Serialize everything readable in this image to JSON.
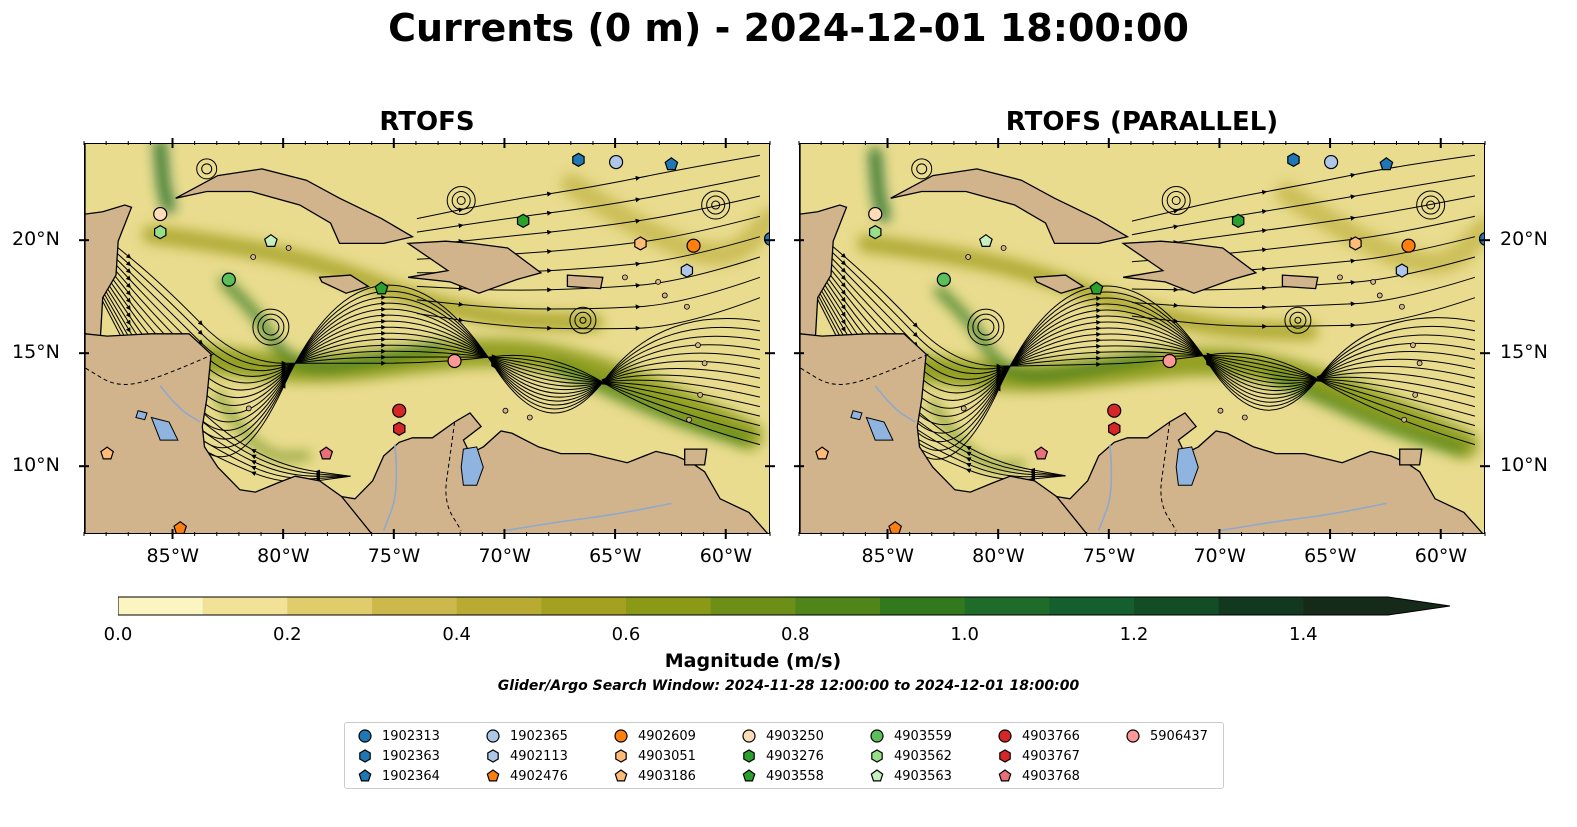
{
  "title": "Currents (0 m) - 2024-12-01 18:00:00",
  "panels": [
    {
      "title": "RTOFS"
    },
    {
      "title": "RTOFS (PARALLEL)"
    }
  ],
  "map_extent": {
    "lon": [
      -89.0,
      -58.0
    ],
    "lat": [
      7.0,
      24.3
    ]
  },
  "lon_ticks": [
    "85°W",
    "80°W",
    "75°W",
    "70°W",
    "65°W",
    "60°W"
  ],
  "lat_ticks": [
    "10°N",
    "15°N",
    "20°N"
  ],
  "colorbar": {
    "label": "Magnitude (m/s)",
    "ticks": [
      "0.0",
      "0.2",
      "0.4",
      "0.6",
      "0.8",
      "1.0",
      "1.2",
      "1.4"
    ],
    "range": [
      0.0,
      1.5
    ],
    "extend": "max",
    "colors": [
      "#fbf5c2",
      "#f1e297",
      "#e1cc6b",
      "#cdb84b",
      "#b9aa34",
      "#a4a020",
      "#8a9a16",
      "#6d8f17",
      "#4f8519",
      "#32791d",
      "#1f6c2a",
      "#155e2d",
      "#134d26",
      "#12391f",
      "#152a18"
    ]
  },
  "land_color": "#d2b48c",
  "lake_color": "#8fb4e0",
  "search_window": "Glider/Argo Search Window: 2024-11-28 12:00:00 to 2024-12-01 18:00:00",
  "legend": [
    {
      "id": "1902313",
      "color": "#1f77b4",
      "marker": "circle"
    },
    {
      "id": "1902363",
      "color": "#1f77b4",
      "marker": "hexagon"
    },
    {
      "id": "1902364",
      "color": "#1f77b4",
      "marker": "pentagon"
    },
    {
      "id": "1902365",
      "color": "#aec7e8",
      "marker": "circle"
    },
    {
      "id": "4902113",
      "color": "#aec7e8",
      "marker": "hexagon"
    },
    {
      "id": "4902476",
      "color": "#ff7f0e",
      "marker": "pentagon"
    },
    {
      "id": "4902609",
      "color": "#ff7f0e",
      "marker": "circle"
    },
    {
      "id": "4903051",
      "color": "#ffbb78",
      "marker": "hexagon"
    },
    {
      "id": "4903186",
      "color": "#ffbb78",
      "marker": "pentagon"
    },
    {
      "id": "4903250",
      "color": "#ffdcb8",
      "marker": "circle"
    },
    {
      "id": "4903276",
      "color": "#2ca02c",
      "marker": "hexagon"
    },
    {
      "id": "4903558",
      "color": "#2ca02c",
      "marker": "pentagon"
    },
    {
      "id": "4903559",
      "color": "#5bbf5b",
      "marker": "circle"
    },
    {
      "id": "4903562",
      "color": "#98df8a",
      "marker": "hexagon"
    },
    {
      "id": "4903563",
      "color": "#c7f0c0",
      "marker": "pentagon"
    },
    {
      "id": "4903766",
      "color": "#d62728",
      "marker": "circle"
    },
    {
      "id": "4903767",
      "color": "#d62728",
      "marker": "hexagon"
    },
    {
      "id": "4903768",
      "color": "#e8707a",
      "marker": "pentagon"
    },
    {
      "id": "5906437",
      "color": "#ff9896",
      "marker": "circle"
    }
  ],
  "floats": [
    {
      "id": "1902313",
      "lon": -58.0,
      "lat": 20.1
    },
    {
      "id": "1902363",
      "lon": -66.7,
      "lat": 23.6
    },
    {
      "id": "1902364",
      "lon": -62.5,
      "lat": 23.4
    },
    {
      "id": "1902365",
      "lon": -65.0,
      "lat": 23.5
    },
    {
      "id": "4902113",
      "lon": -61.8,
      "lat": 18.7
    },
    {
      "id": "4902476",
      "lon": -84.7,
      "lat": 7.3
    },
    {
      "id": "4902609",
      "lon": -61.5,
      "lat": 19.8
    },
    {
      "id": "4903051",
      "lon": -63.9,
      "lat": 19.9
    },
    {
      "id": "4903186",
      "lon": -88.0,
      "lat": 10.6
    },
    {
      "id": "4903250",
      "lon": -85.6,
      "lat": 21.2
    },
    {
      "id": "4903276",
      "lon": -69.2,
      "lat": 20.9
    },
    {
      "id": "4903558",
      "lon": -75.6,
      "lat": 17.9
    },
    {
      "id": "4903559",
      "lon": -82.5,
      "lat": 18.3
    },
    {
      "id": "4903562",
      "lon": -85.6,
      "lat": 20.4
    },
    {
      "id": "4903563",
      "lon": -80.6,
      "lat": 20.0
    },
    {
      "id": "4903766",
      "lon": -74.8,
      "lat": 12.5
    },
    {
      "id": "4903767",
      "lon": -74.8,
      "lat": 11.7
    },
    {
      "id": "4903768",
      "lon": -78.1,
      "lat": 10.6
    },
    {
      "id": "5906437",
      "lon": -72.3,
      "lat": 14.7
    }
  ]
}
